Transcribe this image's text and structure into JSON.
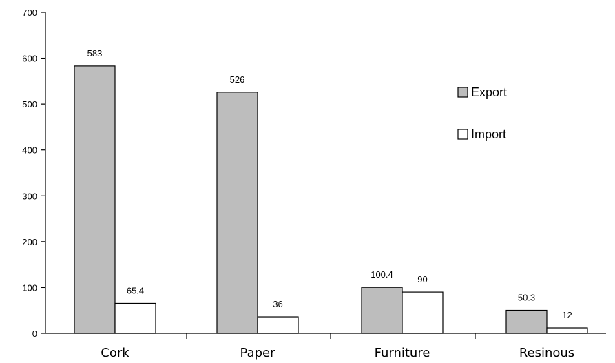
{
  "chart_data": {
    "type": "bar",
    "categories": [
      "Cork",
      "Paper",
      "Furniture",
      "Resinous"
    ],
    "series": [
      {
        "name": "Export",
        "values": [
          583,
          526,
          100.4,
          50.3
        ],
        "color": "#bdbdbd"
      },
      {
        "name": "Import",
        "values": [
          65.4,
          36,
          90,
          12
        ],
        "color": "#ffffff"
      }
    ],
    "data_labels": [
      [
        "583",
        "526",
        "100.4",
        "50.3"
      ],
      [
        "65.4",
        "36",
        "90",
        "12"
      ]
    ],
    "ylim": [
      0,
      700
    ],
    "yticks": [
      "0",
      "100",
      "200",
      "300",
      "400",
      "500",
      "600",
      "700"
    ],
    "title": "",
    "xlabel": "",
    "ylabel": "",
    "legend": "right",
    "grid": false
  }
}
